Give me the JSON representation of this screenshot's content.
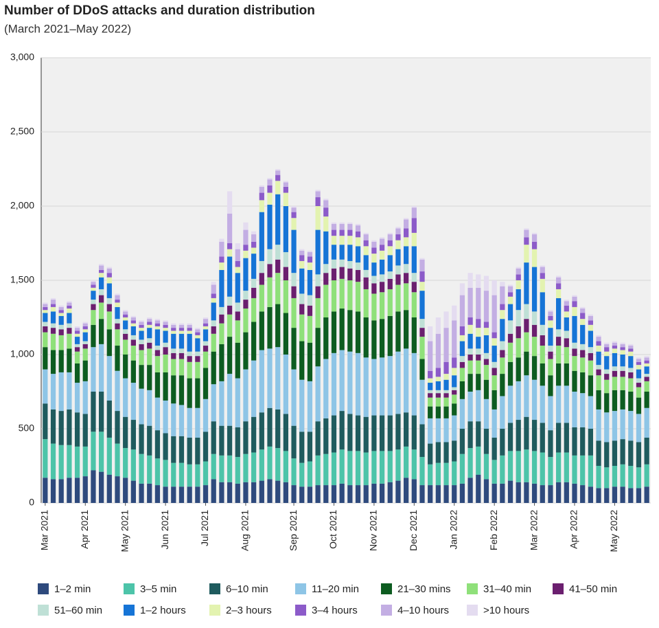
{
  "chart_data": {
    "type": "stacked-bar",
    "title": "Number of DDoS attacks and duration distribution",
    "subtitle": "(March 2021–May 2022)",
    "categories": [
      "Mar 2021",
      null,
      null,
      null,
      null,
      "Apr 2021",
      null,
      null,
      null,
      null,
      "May 2021",
      null,
      null,
      null,
      null,
      "Jun 2021",
      null,
      null,
      null,
      null,
      "Jul 2021",
      null,
      null,
      null,
      null,
      "Aug 2021",
      null,
      null,
      null,
      null,
      null,
      "Sep 2021",
      null,
      null,
      null,
      null,
      "Oct 2021",
      null,
      null,
      null,
      null,
      "Nov 2021",
      null,
      null,
      null,
      null,
      "Dec 2021",
      null,
      null,
      null,
      null,
      "Jan 2022",
      null,
      null,
      null,
      null,
      "Feb 2022",
      null,
      null,
      null,
      null,
      "Mar 2022",
      null,
      null,
      null,
      null,
      "Apr 2022",
      null,
      null,
      null,
      null,
      "May 2022",
      null,
      null,
      null,
      null
    ],
    "ylim": [
      0,
      3000
    ],
    "yticks": [
      0,
      500,
      {
        "value": 1000,
        "label": "1,000"
      },
      {
        "value": 1500,
        "label": "1,500"
      },
      {
        "value": 2000,
        "label": "2,000"
      },
      {
        "value": 2500,
        "label": "2,500"
      },
      {
        "value": 3000,
        "label": "3,000"
      }
    ],
    "grid": true,
    "series": [
      {
        "name": "1–2 min",
        "color": "#2e4a7d",
        "values": [
          170,
          160,
          160,
          170,
          170,
          180,
          220,
          210,
          190,
          180,
          170,
          150,
          130,
          130,
          120,
          110,
          110,
          110,
          110,
          110,
          120,
          160,
          140,
          140,
          130,
          140,
          140,
          150,
          160,
          150,
          140,
          120,
          110,
          110,
          120,
          120,
          120,
          130,
          120,
          120,
          120,
          130,
          130,
          140,
          150,
          170,
          160,
          120,
          120,
          120,
          120,
          120,
          130,
          170,
          190,
          160,
          130,
          130,
          150,
          140,
          140,
          130,
          120,
          120,
          140,
          140,
          130,
          120,
          110,
          100,
          100,
          110,
          110,
          100,
          100,
          110
        ]
      },
      {
        "name": "3–5 min",
        "color": "#4dc4a9",
        "values": [
          260,
          240,
          230,
          220,
          210,
          200,
          260,
          270,
          250,
          220,
          200,
          210,
          200,
          190,
          180,
          180,
          160,
          160,
          150,
          150,
          160,
          170,
          180,
          180,
          180,
          190,
          200,
          210,
          220,
          220,
          210,
          180,
          160,
          170,
          200,
          210,
          220,
          230,
          230,
          230,
          220,
          220,
          220,
          210,
          210,
          210,
          200,
          190,
          140,
          150,
          150,
          160,
          200,
          200,
          190,
          170,
          160,
          190,
          200,
          210,
          220,
          220,
          220,
          190,
          200,
          200,
          190,
          200,
          210,
          150,
          140,
          140,
          150,
          150,
          140,
          150
        ]
      },
      {
        "name": "6–10 min",
        "color": "#1f5b5e",
        "values": [
          240,
          230,
          230,
          240,
          230,
          220,
          270,
          270,
          250,
          220,
          210,
          200,
          200,
          200,
          190,
          180,
          180,
          180,
          180,
          180,
          200,
          220,
          200,
          200,
          200,
          220,
          240,
          250,
          260,
          260,
          250,
          220,
          210,
          200,
          230,
          240,
          250,
          260,
          250,
          240,
          240,
          240,
          240,
          240,
          240,
          230,
          230,
          220,
          140,
          140,
          140,
          140,
          170,
          180,
          170,
          170,
          150,
          180,
          190,
          210,
          220,
          210,
          200,
          180,
          200,
          200,
          190,
          190,
          180,
          170,
          170,
          170,
          170,
          170,
          170,
          180
        ]
      },
      {
        "name": "11–20 min",
        "color": "#8ec5e6",
        "values": [
          230,
          240,
          260,
          250,
          200,
          220,
          300,
          320,
          300,
          270,
          260,
          250,
          240,
          240,
          220,
          220,
          220,
          210,
          200,
          200,
          220,
          250,
          300,
          350,
          330,
          350,
          380,
          420,
          400,
          420,
          400,
          380,
          350,
          340,
          370,
          400,
          420,
          410,
          420,
          420,
          400,
          380,
          390,
          400,
          420,
          430,
          420,
          300,
          170,
          160,
          160,
          170,
          200,
          200,
          210,
          200,
          190,
          220,
          250,
          260,
          280,
          270,
          250,
          230,
          250,
          250,
          240,
          230,
          220,
          210,
          200,
          200,
          200,
          200,
          190,
          200
        ]
      },
      {
        "name": "21–30 mins",
        "color": "#0d5c20",
        "values": [
          150,
          160,
          150,
          160,
          130,
          140,
          150,
          170,
          180,
          170,
          160,
          150,
          160,
          170,
          170,
          190,
          190,
          200,
          200,
          200,
          210,
          220,
          250,
          250,
          240,
          250,
          260,
          260,
          280,
          290,
          280,
          280,
          260,
          260,
          260,
          280,
          280,
          280,
          280,
          280,
          270,
          260,
          260,
          270,
          270,
          260,
          240,
          140,
          80,
          80,
          80,
          80,
          120,
          120,
          110,
          130,
          130,
          150,
          160,
          160,
          160,
          160,
          150,
          140,
          150,
          150,
          140,
          140,
          140,
          130,
          130,
          140,
          130,
          130,
          110,
          110
        ]
      },
      {
        "name": "31–40 min",
        "color": "#8fe07a",
        "values": [
          100,
          110,
          100,
          100,
          80,
          80,
          100,
          110,
          120,
          110,
          100,
          100,
          100,
          110,
          110,
          120,
          110,
          110,
          110,
          110,
          110,
          120,
          140,
          150,
          150,
          160,
          160,
          180,
          200,
          210,
          220,
          200,
          180,
          180,
          200,
          220,
          210,
          200,
          200,
          200,
          190,
          180,
          180,
          180,
          180,
          180,
          170,
          150,
          60,
          60,
          60,
          60,
          90,
          90,
          90,
          100,
          100,
          110,
          130,
          130,
          130,
          130,
          120,
          110,
          120,
          110,
          100,
          100,
          100,
          100,
          90,
          90,
          90,
          90,
          70,
          70
        ]
      },
      {
        "name": "41–50 min",
        "color": "#6b1f6f",
        "values": [
          40,
          40,
          40,
          40,
          30,
          30,
          40,
          50,
          50,
          40,
          40,
          40,
          40,
          40,
          40,
          50,
          40,
          40,
          40,
          40,
          40,
          50,
          60,
          60,
          60,
          60,
          70,
          80,
          90,
          90,
          90,
          80,
          70,
          70,
          80,
          80,
          80,
          80,
          80,
          80,
          80,
          70,
          70,
          70,
          70,
          70,
          70,
          60,
          30,
          30,
          30,
          30,
          40,
          40,
          40,
          40,
          50,
          50,
          60,
          80,
          90,
          80,
          70,
          50,
          60,
          60,
          50,
          50,
          50,
          40,
          40,
          40,
          40,
          40,
          30,
          30
        ]
      },
      {
        "name": "51–60 min",
        "color": "#bfe0d6",
        "values": [
          30,
          30,
          30,
          30,
          20,
          20,
          30,
          40,
          40,
          30,
          30,
          30,
          30,
          30,
          30,
          30,
          30,
          30,
          30,
          30,
          30,
          40,
          50,
          60,
          60,
          60,
          60,
          80,
          100,
          100,
          100,
          90,
          70,
          70,
          80,
          60,
          60,
          50,
          50,
          50,
          50,
          50,
          50,
          50,
          60,
          60,
          60,
          60,
          20,
          20,
          20,
          20,
          40,
          40,
          40,
          40,
          40,
          60,
          90,
          110,
          100,
          90,
          70,
          40,
          50,
          50,
          40,
          40,
          40,
          30,
          30,
          30,
          30,
          30,
          30,
          20
        ]
      },
      {
        "name": "1–2 hours",
        "color": "#1674d6",
        "values": [
          60,
          80,
          60,
          70,
          50,
          60,
          60,
          80,
          100,
          80,
          60,
          60,
          60,
          70,
          110,
          80,
          100,
          100,
          120,
          90,
          80,
          120,
          250,
          270,
          200,
          220,
          170,
          330,
          300,
          340,
          310,
          290,
          170,
          170,
          300,
          220,
          100,
          100,
          110,
          110,
          100,
          90,
          100,
          110,
          110,
          120,
          180,
          190,
          50,
          60,
          70,
          80,
          100,
          100,
          80,
          120,
          110,
          150,
          110,
          140,
          280,
          300,
          220,
          120,
          210,
          90,
          180,
          130,
          110,
          90,
          90,
          90,
          80,
          80,
          60,
          50
        ]
      },
      {
        "name": "2–3 hours",
        "color": "#e3f3b0",
        "values": [
          20,
          30,
          20,
          30,
          20,
          20,
          20,
          30,
          40,
          30,
          20,
          20,
          20,
          20,
          20,
          20,
          20,
          20,
          20,
          20,
          20,
          30,
          50,
          50,
          40,
          50,
          40,
          80,
          80,
          90,
          90,
          80,
          50,
          50,
          160,
          100,
          60,
          60,
          60,
          60,
          60,
          60,
          60,
          60,
          60,
          60,
          90,
          60,
          30,
          30,
          40,
          50,
          40,
          60,
          60,
          50,
          50,
          60,
          50,
          60,
          120,
          120,
          90,
          50,
          60,
          40,
          60,
          40,
          40,
          40,
          30,
          30,
          30,
          30,
          30,
          20
        ]
      },
      {
        "name": "3–4 hours",
        "color": "#8c5bc9",
        "values": [
          20,
          20,
          20,
          20,
          20,
          20,
          20,
          20,
          30,
          20,
          20,
          20,
          20,
          20,
          20,
          20,
          20,
          20,
          20,
          20,
          20,
          30,
          40,
          40,
          40,
          40,
          40,
          50,
          50,
          40,
          40,
          40,
          40,
          40,
          60,
          60,
          40,
          40,
          40,
          40,
          40,
          40,
          40,
          40,
          40,
          60,
          100,
          70,
          50,
          60,
          80,
          70,
          60,
          50,
          60,
          40,
          40,
          40,
          30,
          40,
          50,
          50,
          40,
          30,
          40,
          40,
          40,
          40,
          30,
          30,
          30,
          20,
          20,
          20,
          20,
          20
        ]
      },
      {
        "name": "4–10 hours",
        "color": "#c3aee3",
        "values": [
          20,
          30,
          20,
          20,
          20,
          20,
          20,
          30,
          30,
          30,
          20,
          20,
          20,
          20,
          20,
          20,
          20,
          20,
          20,
          20,
          30,
          60,
          100,
          200,
          80,
          100,
          50,
          40,
          40,
          30,
          30,
          30,
          30,
          30,
          40,
          50,
          40,
          40,
          40,
          40,
          40,
          40,
          40,
          40,
          40,
          60,
          70,
          80,
          200,
          230,
          230,
          250,
          210,
          200,
          210,
          210,
          250,
          120,
          40,
          40,
          50,
          50,
          40,
          30,
          40,
          30,
          30,
          30,
          30,
          30,
          20,
          20,
          20,
          20,
          20,
          20
        ]
      },
      {
        "name": ">10 hours",
        "color": "#e4dcf0",
        "values": [
          10,
          10,
          10,
          10,
          10,
          10,
          10,
          10,
          10,
          10,
          10,
          10,
          10,
          10,
          10,
          10,
          10,
          10,
          10,
          10,
          10,
          20,
          20,
          150,
          40,
          50,
          20,
          10,
          10,
          10,
          10,
          10,
          10,
          10,
          10,
          10,
          10,
          10,
          10,
          10,
          10,
          10,
          10,
          10,
          10,
          10,
          10,
          10,
          100,
          110,
          110,
          100,
          80,
          100,
          90,
          100,
          100,
          30,
          10,
          10,
          10,
          10,
          10,
          10,
          10,
          10,
          10,
          10,
          10,
          10,
          10,
          10,
          10,
          10,
          10,
          10
        ]
      }
    ]
  }
}
